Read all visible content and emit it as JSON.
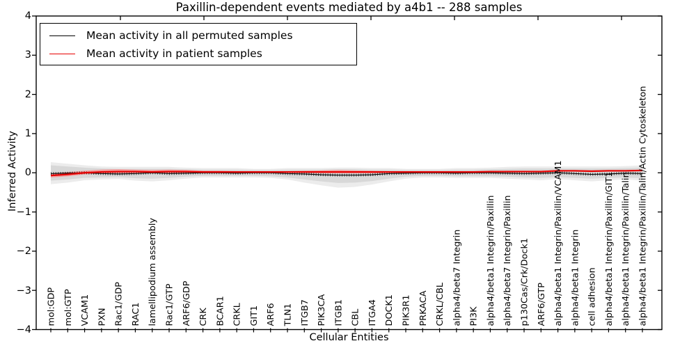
{
  "title": "Paxillin-dependent events mediated by a4b1 -- 288 samples",
  "legend": {
    "items": [
      {
        "label": "Mean activity in all permuted samples",
        "color": "#000000"
      },
      {
        "label": "Mean activity in patient samples",
        "color": "#e60000"
      }
    ]
  },
  "chart_data": {
    "type": "line",
    "title": "Paxillin-dependent events mediated by a4b1 -- 288 samples",
    "xlabel": "Cellular Entities",
    "ylabel": "Inferred Activity",
    "ylim": [
      -4,
      4
    ],
    "ytick_values": [
      4,
      3,
      2,
      1,
      0,
      -1,
      -2,
      -3,
      -4
    ],
    "ytick_labels": [
      "4",
      "3",
      "2",
      "1",
      "0",
      "−1",
      "−2",
      "−3",
      "−4"
    ],
    "grid": false,
    "legend_position": "upper left",
    "categories": [
      "mol:GDP",
      "mol:GTP",
      "VCAM1",
      "PXN",
      "Rac1/GDP",
      "RAC1",
      "lamellipodium assembly",
      "Rac1/GTP",
      "ARF6/GDP",
      "CRK",
      "BCAR1",
      "CRKL",
      "GIT1",
      "ARF6",
      "TLN1",
      "ITGB7",
      "PIK3CA",
      "ITGB1",
      "CBL",
      "ITGA4",
      "DOCK1",
      "PIK3R1",
      "PRKACA",
      "CRKL/CBL",
      "alpha4/beta7 Integrin",
      "PI3K",
      "alpha4/beta1 Integrin/Paxillin",
      "alpha4/beta7 Integrin/Paxillin",
      "p130Cas/Crk/Dock1",
      "ARF6/GTP",
      "alpha4/beta1 Integrin/Paxillin/VCAM1",
      "alpha4/beta1 Integrin",
      "cell adhesion",
      "alpha4/beta1 Integrin/Paxillin/GIT1",
      "alpha4/beta1 Integrin/Paxillin/Talin",
      "alpha4/beta1 Integrin/Paxillin/Talin/Actin Cytoskeleton"
    ],
    "series": [
      {
        "name": "Mean activity in all permuted samples",
        "color": "#000000",
        "values": [
          -0.02,
          -0.01,
          0.0,
          -0.02,
          -0.03,
          -0.02,
          0.0,
          -0.02,
          -0.01,
          0.0,
          0.0,
          -0.01,
          0.0,
          0.0,
          -0.02,
          -0.03,
          -0.05,
          -0.06,
          -0.06,
          -0.05,
          -0.02,
          -0.01,
          0.0,
          0.0,
          -0.01,
          0.0,
          0.0,
          -0.01,
          -0.02,
          -0.01,
          0.0,
          -0.02,
          -0.04,
          -0.03,
          -0.01,
          -0.02
        ]
      },
      {
        "name": "Mean activity in patient samples",
        "color": "#e60000",
        "values": [
          -0.07,
          -0.04,
          0.0,
          0.02,
          0.03,
          0.03,
          0.02,
          0.03,
          0.03,
          0.02,
          0.02,
          0.02,
          0.02,
          0.02,
          0.02,
          0.02,
          0.02,
          0.02,
          0.02,
          0.02,
          0.02,
          0.02,
          0.02,
          0.02,
          0.02,
          0.02,
          0.03,
          0.03,
          0.03,
          0.03,
          0.05,
          0.05,
          0.04,
          0.05,
          0.05,
          0.06
        ]
      }
    ],
    "bands": [
      {
        "name": "permuted-range-outer",
        "color": "#ececec",
        "upper": [
          0.27,
          0.23,
          0.19,
          0.16,
          0.15,
          0.15,
          0.15,
          0.15,
          0.13,
          0.12,
          0.12,
          0.12,
          0.1,
          0.1,
          0.12,
          0.12,
          0.12,
          0.13,
          0.13,
          0.12,
          0.12,
          0.1,
          0.1,
          0.1,
          0.12,
          0.12,
          0.13,
          0.15,
          0.16,
          0.16,
          0.16,
          0.16,
          0.16,
          0.16,
          0.17,
          0.19
        ],
        "lower": [
          -0.29,
          -0.25,
          -0.19,
          -0.17,
          -0.16,
          -0.2,
          -0.22,
          -0.19,
          -0.15,
          -0.12,
          -0.12,
          -0.12,
          -0.12,
          -0.13,
          -0.17,
          -0.25,
          -0.32,
          -0.38,
          -0.36,
          -0.3,
          -0.22,
          -0.15,
          -0.12,
          -0.12,
          -0.13,
          -0.13,
          -0.13,
          -0.15,
          -0.17,
          -0.19,
          -0.16,
          -0.19,
          -0.22,
          -0.19,
          -0.17,
          -0.2
        ]
      },
      {
        "name": "permuted-range-inner",
        "color": "#d8d8d8",
        "upper": [
          0.19,
          0.16,
          0.13,
          0.11,
          0.1,
          0.1,
          0.1,
          0.1,
          0.09,
          0.08,
          0.08,
          0.08,
          0.07,
          0.07,
          0.08,
          0.08,
          0.08,
          0.09,
          0.09,
          0.08,
          0.08,
          0.07,
          0.07,
          0.07,
          0.08,
          0.08,
          0.09,
          0.1,
          0.11,
          0.11,
          0.11,
          0.11,
          0.11,
          0.11,
          0.12,
          0.13
        ],
        "lower": [
          -0.2,
          -0.17,
          -0.13,
          -0.12,
          -0.11,
          -0.14,
          -0.15,
          -0.13,
          -0.1,
          -0.08,
          -0.08,
          -0.08,
          -0.08,
          -0.09,
          -0.12,
          -0.17,
          -0.22,
          -0.26,
          -0.25,
          -0.21,
          -0.15,
          -0.1,
          -0.08,
          -0.08,
          -0.09,
          -0.09,
          -0.09,
          -0.1,
          -0.12,
          -0.13,
          -0.11,
          -0.13,
          -0.15,
          -0.13,
          -0.12,
          -0.14
        ]
      },
      {
        "name": "patient-range",
        "color": "#f29d9d",
        "upper": [
          -0.02,
          0.02,
          0.05,
          0.08,
          0.09,
          0.08,
          0.07,
          0.08,
          0.07,
          0.05,
          0.05,
          0.04,
          0.04,
          0.04,
          0.04,
          0.05,
          0.06,
          0.07,
          0.06,
          0.05,
          0.04,
          0.04,
          0.03,
          0.03,
          0.04,
          0.04,
          0.04,
          0.05,
          0.05,
          0.05,
          0.07,
          0.07,
          0.06,
          0.07,
          0.07,
          0.08
        ],
        "lower": [
          -0.12,
          -0.09,
          -0.04,
          -0.02,
          -0.01,
          -0.01,
          -0.01,
          -0.01,
          -0.01,
          0.0,
          0.0,
          0.0,
          0.0,
          0.0,
          0.0,
          0.0,
          -0.01,
          -0.01,
          -0.01,
          -0.01,
          0.0,
          0.0,
          0.0,
          0.01,
          0.01,
          0.01,
          0.01,
          0.01,
          0.01,
          0.01,
          0.03,
          0.03,
          0.02,
          0.03,
          0.03,
          0.04
        ]
      }
    ]
  }
}
